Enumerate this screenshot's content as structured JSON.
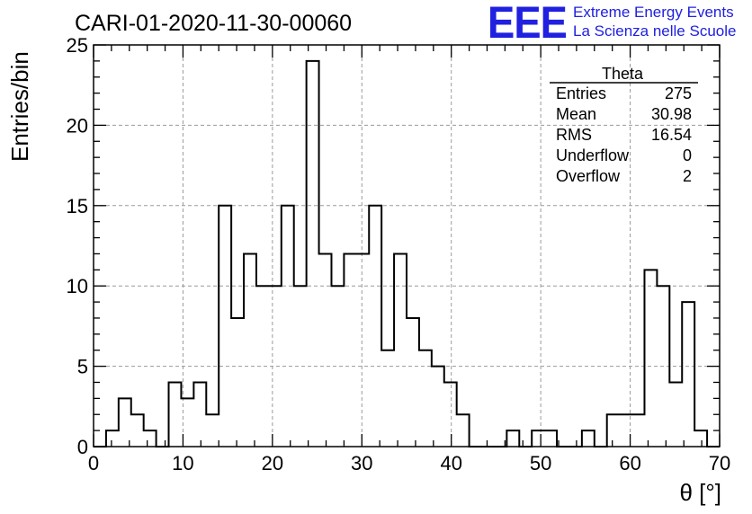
{
  "header": {
    "run_title": "CARI-01-2020-11-30-00060",
    "logo_text": "EEE",
    "logo_line1": "Extreme Energy Events",
    "logo_line2": "La Scienza nelle Scuole"
  },
  "stats": {
    "name": "Theta",
    "rows": [
      {
        "label": "Entries",
        "value": "275"
      },
      {
        "label": "Mean",
        "value": "30.98"
      },
      {
        "label": "RMS",
        "value": "16.54"
      },
      {
        "label": "Underflow",
        "value": "0"
      },
      {
        "label": "Overflow",
        "value": "2"
      }
    ]
  },
  "chart_data": {
    "type": "histogram",
    "title": "CARI-01-2020-11-30-00060",
    "xlabel": "θ [°]",
    "ylabel": "Entries/bin",
    "xlim": [
      0,
      70
    ],
    "ylim": [
      0,
      25
    ],
    "x_ticks": [
      0,
      10,
      20,
      30,
      40,
      50,
      60,
      70
    ],
    "y_ticks": [
      0,
      5,
      10,
      15,
      20,
      25
    ],
    "grid": true,
    "bin_width": 1.4,
    "bin_edges_start": 0,
    "values": [
      0,
      1,
      3,
      2,
      1,
      0,
      4,
      3,
      4,
      2,
      15,
      8,
      12,
      10,
      10,
      15,
      10,
      24,
      12,
      10,
      12,
      12,
      15,
      6,
      12,
      8,
      6,
      5,
      4,
      2,
      0,
      0,
      0,
      1,
      0,
      1,
      1,
      0,
      0,
      1,
      0,
      2,
      2,
      2,
      11,
      10,
      4,
      9,
      1,
      0
    ]
  }
}
